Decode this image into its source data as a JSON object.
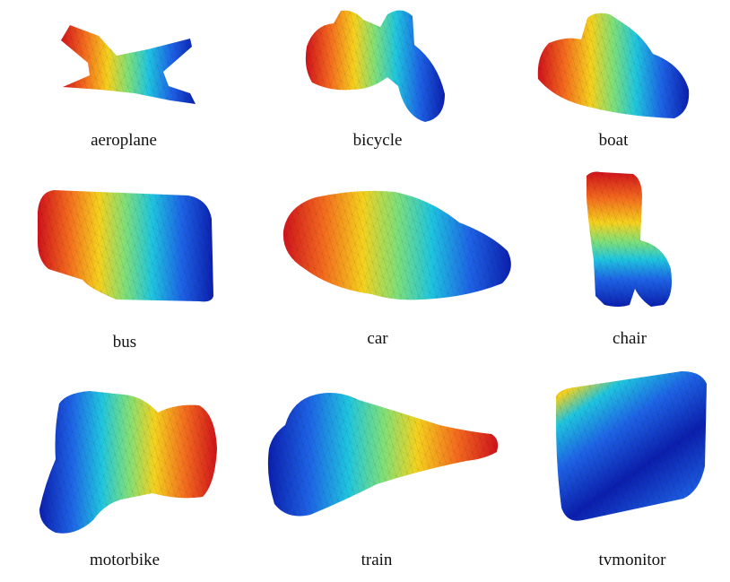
{
  "figure": {
    "panels": [
      {
        "id": "aeroplane",
        "label": "aeroplane",
        "icon": "aeroplane-mesh-shape"
      },
      {
        "id": "bicycle",
        "label": "bicycle",
        "icon": "bicycle-mesh-shape"
      },
      {
        "id": "boat",
        "label": "boat",
        "icon": "boat-mesh-shape"
      },
      {
        "id": "bus",
        "label": "bus",
        "icon": "bus-mesh-shape"
      },
      {
        "id": "car",
        "label": "car",
        "icon": "car-mesh-shape"
      },
      {
        "id": "chair",
        "label": "chair",
        "icon": "chair-mesh-shape"
      },
      {
        "id": "motorbike",
        "label": "motorbike",
        "icon": "motorbike-mesh-shape"
      },
      {
        "id": "train",
        "label": "train",
        "icon": "train-mesh-shape"
      },
      {
        "id": "tvmonitor",
        "label": "tvmonitor",
        "icon": "tvmonitor-mesh-shape"
      }
    ],
    "colormap": [
      "#d0121b",
      "#f46d1e",
      "#f5d21e",
      "#7ee07a",
      "#1fc6e0",
      "#1e63e6",
      "#0b1fae"
    ]
  }
}
